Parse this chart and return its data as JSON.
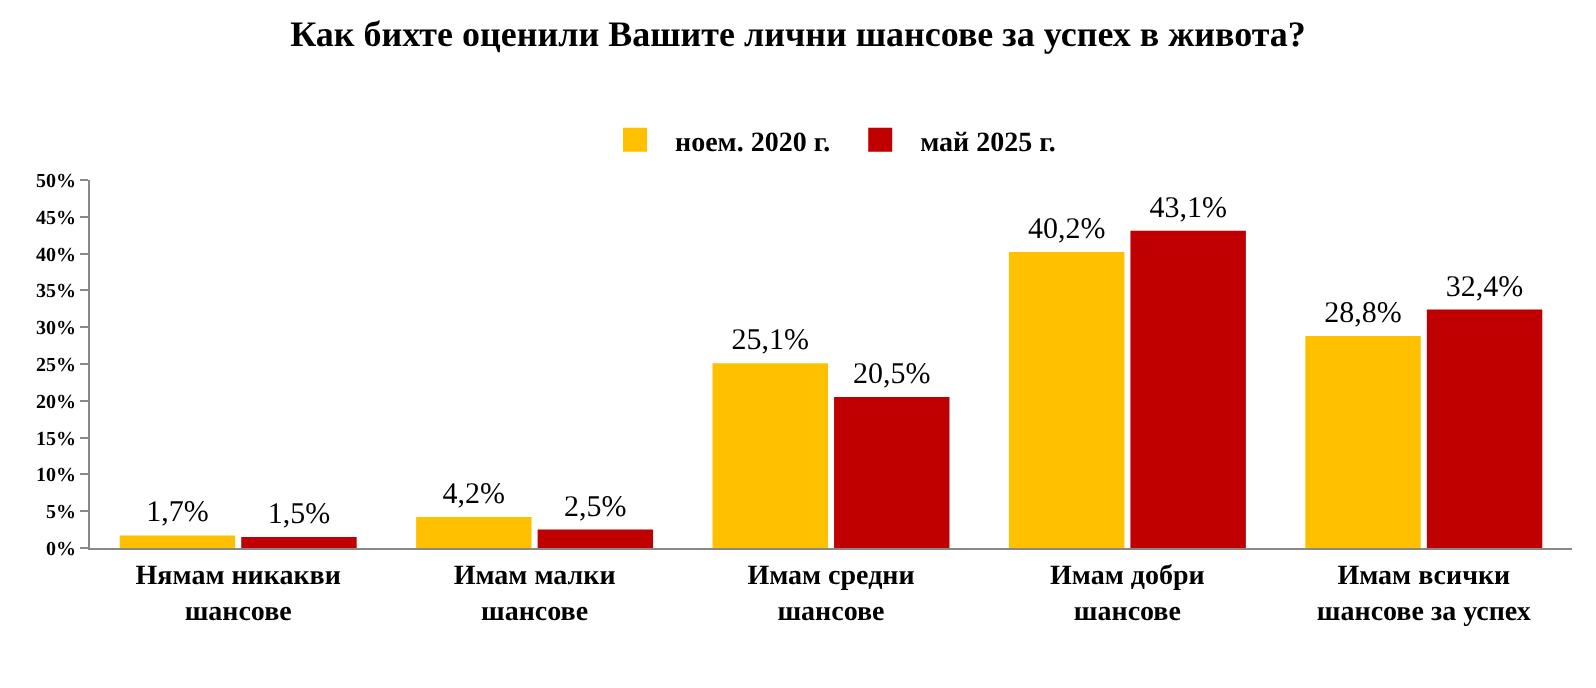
{
  "chart_data": {
    "type": "bar",
    "title": "Как бихте оценили Вашите лични шансове за успех в живота?",
    "categories": [
      "Нямам никакви шансове",
      "Имам малки шансове",
      "Имам средни шансове",
      "Имам добри шансове",
      "Имам всички шансове за успех"
    ],
    "series": [
      {
        "name": "ноем. 2020 г.",
        "color": "#ffc000",
        "values": [
          1.7,
          4.2,
          25.1,
          40.2,
          28.8
        ],
        "value_labels": [
          "1,7%",
          "4,2%",
          "25,1%",
          "40,2%",
          "28,8%"
        ]
      },
      {
        "name": "май 2025 г.",
        "color": "#c00000",
        "values": [
          1.5,
          2.5,
          20.5,
          43.1,
          32.4
        ],
        "value_labels": [
          "1,5%",
          "2,5%",
          "20,5%",
          "43,1%",
          "32,4%"
        ]
      }
    ],
    "ylim": [
      0,
      50
    ],
    "yticks": [
      {
        "value": 0,
        "label": "0%"
      },
      {
        "value": 5,
        "label": "5%"
      },
      {
        "value": 10,
        "label": "10%"
      },
      {
        "value": 15,
        "label": "15%"
      },
      {
        "value": 20,
        "label": "20%"
      },
      {
        "value": 25,
        "label": "25%"
      },
      {
        "value": 30,
        "label": "30%"
      },
      {
        "value": 35,
        "label": "35%"
      },
      {
        "value": 40,
        "label": "40%"
      },
      {
        "value": 45,
        "label": "45%"
      },
      {
        "value": 50,
        "label": "50%"
      }
    ],
    "grid": false,
    "legend": "top"
  }
}
